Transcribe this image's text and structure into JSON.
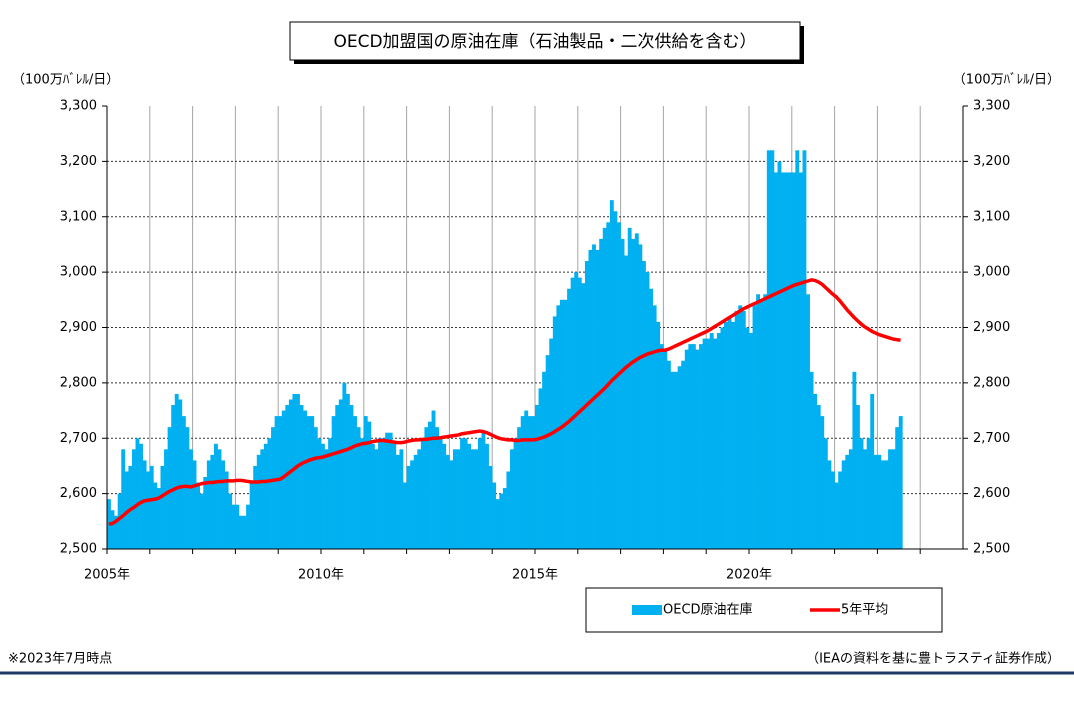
{
  "chart_data": {
    "type": "bar_line",
    "title": "OECD加盟国の原油在庫（石油製品・二次供給を含む）",
    "y_label": "（100万ﾊﾞﾚﾙ/日）",
    "y2_label": "（100万ﾊﾞﾚﾙ/日）",
    "note": "※2023年7月時点",
    "source": "（IEAの資料を基に豊トラスティ証券作成）",
    "categories": [
      "2005年",
      null,
      null,
      null,
      null,
      null,
      null,
      null,
      null,
      null,
      null,
      null,
      null,
      null,
      null,
      null,
      null,
      null,
      null,
      null,
      null,
      null,
      null,
      null,
      null,
      null,
      null,
      null,
      null,
      null,
      null,
      null,
      null,
      null,
      null,
      null,
      null,
      null,
      null,
      null,
      null,
      null,
      null,
      null,
      null,
      null,
      null,
      null,
      null,
      null,
      null,
      null,
      null,
      null,
      null,
      null,
      null,
      null,
      null,
      null,
      "2010年",
      null,
      null,
      null,
      null,
      null,
      null,
      null,
      null,
      null,
      null,
      null,
      null,
      null,
      null,
      null,
      null,
      null,
      null,
      null,
      null,
      null,
      null,
      null,
      null,
      null,
      null,
      null,
      null,
      null,
      null,
      null,
      null,
      null,
      null,
      null,
      null,
      null,
      null,
      null,
      null,
      null,
      null,
      null,
      null,
      null,
      null,
      null,
      null,
      null,
      null,
      null,
      null,
      null,
      null,
      null,
      null,
      null,
      null,
      null,
      "2015年",
      null,
      null,
      null,
      null,
      null,
      null,
      null,
      null,
      null,
      null,
      null,
      null,
      null,
      null,
      null,
      null,
      null,
      null,
      null,
      null,
      null,
      null,
      null,
      null,
      null,
      null,
      null,
      null,
      null,
      null,
      null,
      null,
      null,
      null,
      null,
      null,
      null,
      null,
      null,
      null,
      null,
      null,
      null,
      null,
      null,
      null,
      null,
      null,
      null,
      null,
      null,
      null,
      null,
      null,
      null,
      null,
      null,
      null,
      null,
      "2020年",
      null,
      null,
      null,
      null,
      null,
      null,
      null,
      null,
      null,
      null,
      null,
      null,
      null,
      null,
      null,
      null,
      null,
      null,
      null,
      null,
      null,
      null,
      null,
      null,
      null,
      null,
      null,
      null,
      null,
      null,
      null,
      null,
      null,
      null,
      null,
      null,
      null,
      null,
      null,
      null,
      null,
      null,
      null,
      null,
      null,
      null,
      null,
      null,
      null,
      null,
      null,
      null,
      null,
      null,
      null,
      null,
      null,
      null,
      null
    ],
    "series": [
      {
        "name": "OECD原油在庫",
        "type": "bar",
        "color": "#00b0f0",
        "values": [
          2590,
          2570,
          2560,
          2600,
          2680,
          2640,
          2650,
          2680,
          2700,
          2690,
          2660,
          2640,
          2650,
          2620,
          2610,
          2650,
          2680,
          2720,
          2760,
          2780,
          2770,
          2740,
          2720,
          2680,
          2660,
          2620,
          2600,
          2630,
          2660,
          2670,
          2690,
          2680,
          2660,
          2640,
          2600,
          2580,
          2580,
          2560,
          2560,
          2580,
          2620,
          2650,
          2670,
          2680,
          2690,
          2700,
          2720,
          2740,
          2740,
          2750,
          2760,
          2770,
          2780,
          2780,
          2760,
          2750,
          2740,
          2740,
          2720,
          2700,
          2690,
          2680,
          2700,
          2740,
          2760,
          2770,
          2800,
          2780,
          2760,
          2740,
          2720,
          2700,
          2740,
          2730,
          2690,
          2680,
          2700,
          2700,
          2710,
          2710,
          2690,
          2670,
          2680,
          2620,
          2650,
          2660,
          2670,
          2680,
          2700,
          2720,
          2730,
          2750,
          2720,
          2700,
          2690,
          2670,
          2660,
          2680,
          2680,
          2700,
          2700,
          2690,
          2680,
          2680,
          2700,
          2710,
          2690,
          2650,
          2620,
          2590,
          2600,
          2610,
          2640,
          2680,
          2700,
          2720,
          2740,
          2750,
          2740,
          2740,
          2760,
          2790,
          2820,
          2850,
          2880,
          2920,
          2940,
          2950,
          2950,
          2970,
          2990,
          3000,
          2990,
          2980,
          3020,
          3040,
          3050,
          3040,
          3060,
          3080,
          3090,
          3130,
          3110,
          3090,
          3060,
          3030,
          3080,
          3060,
          3070,
          3050,
          3020,
          3000,
          2970,
          2940,
          2910,
          2870,
          2860,
          2840,
          2820,
          2820,
          2830,
          2840,
          2860,
          2870,
          2870,
          2860,
          2870,
          2880,
          2880,
          2890,
          2880,
          2890,
          2900,
          2910,
          2920,
          2910,
          2930,
          2940,
          2930,
          2900,
          2890,
          2940,
          2960,
          2950,
          2960,
          3220,
          3220,
          3180,
          3200,
          3180,
          3180,
          3180,
          3180,
          3220,
          3180,
          3220,
          2960,
          2820,
          2780,
          2760,
          2740,
          2700,
          2660,
          2640,
          2620,
          2640,
          2660,
          2670,
          2680,
          2820,
          2760,
          2700,
          2680,
          2700,
          2780,
          2670,
          2670,
          2660,
          2660,
          2680,
          2680,
          2720,
          2740,
          null,
          null,
          null,
          null,
          null,
          null,
          null,
          null,
          null,
          null,
          null,
          null,
          null,
          null,
          null,
          null,
          null
        ]
      },
      {
        "name": "5年平均",
        "type": "line",
        "color": "#ff0000",
        "values": [
          2545,
          2546,
          2550,
          2555,
          2560,
          2566,
          2571,
          2575,
          2580,
          2584,
          2587,
          2588,
          2589,
          2590,
          2592,
          2596,
          2600,
          2604,
          2607,
          2610,
          2612,
          2613,
          2613,
          2612,
          2614,
          2616,
          2618,
          2619,
          2620,
          2620,
          2621,
          2622,
          2622,
          2623,
          2623,
          2623,
          2624,
          2624,
          2623,
          2622,
          2621,
          2621,
          2621,
          2622,
          2622,
          2623,
          2624,
          2625,
          2626,
          2630,
          2635,
          2640,
          2645,
          2650,
          2654,
          2657,
          2660,
          2662,
          2664,
          2665,
          2666,
          2668,
          2670,
          2672,
          2674,
          2676,
          2678,
          2680,
          2683,
          2686,
          2688,
          2690,
          2691,
          2692,
          2694,
          2695,
          2696,
          2696,
          2695,
          2694,
          2693,
          2692,
          2692,
          2693,
          2695,
          2696,
          2697,
          2697,
          2698,
          2698,
          2699,
          2700,
          2700,
          2701,
          2702,
          2703,
          2704,
          2705,
          2706,
          2708,
          2709,
          2710,
          2711,
          2712,
          2713,
          2712,
          2710,
          2707,
          2704,
          2701,
          2699,
          2698,
          2697,
          2697,
          2696,
          2696,
          2697,
          2697,
          2697,
          2697,
          2698,
          2700,
          2702,
          2705,
          2708,
          2712,
          2716,
          2720,
          2725,
          2730,
          2736,
          2742,
          2748,
          2754,
          2760,
          2766,
          2772,
          2778,
          2784,
          2790,
          2797,
          2804,
          2810,
          2816,
          2822,
          2828,
          2833,
          2838,
          2842,
          2846,
          2849,
          2852,
          2854,
          2856,
          2858,
          2859,
          2859,
          2861,
          2864,
          2867,
          2870,
          2873,
          2876,
          2879,
          2882,
          2885,
          2888,
          2891,
          2894,
          2898,
          2902,
          2906,
          2910,
          2914,
          2918,
          2922,
          2926,
          2930,
          2934,
          2937,
          2940,
          2943,
          2946,
          2949,
          2952,
          2955,
          2958,
          2961,
          2964,
          2967,
          2970,
          2973,
          2976,
          2978,
          2980,
          2982,
          2984,
          2986,
          2985,
          2982,
          2978,
          2972,
          2966,
          2960,
          2955,
          2948,
          2940,
          2932,
          2925,
          2918,
          2912,
          2906,
          2901,
          2897,
          2893,
          2890,
          2887,
          2885,
          2883,
          2881,
          2879,
          2878,
          2877,
          null,
          null,
          null,
          null,
          null,
          null,
          null,
          null,
          null,
          null,
          null,
          null,
          null,
          null,
          null,
          null,
          null
        ]
      }
    ],
    "ylim": [
      2500,
      3300
    ],
    "yticks": [
      {
        "value": 2500,
        "label": "2,500"
      },
      {
        "value": 2600,
        "label": "2,600"
      },
      {
        "value": 2700,
        "label": "2,700"
      },
      {
        "value": 2800,
        "label": "2,800"
      },
      {
        "value": 2900,
        "label": "2,900"
      },
      {
        "value": 3000,
        "label": "3,000"
      },
      {
        "value": 3100,
        "label": "3,100"
      },
      {
        "value": 3200,
        "label": "3,200"
      },
      {
        "value": 3300,
        "label": "3,300"
      }
    ],
    "y2lim": [
      2500,
      3300
    ],
    "y2ticks": [
      {
        "value": 2500,
        "label": "2,500"
      },
      {
        "value": 2600,
        "label": "2,600"
      },
      {
        "value": 2700,
        "label": "2,700"
      },
      {
        "value": 2800,
        "label": "2,800"
      },
      {
        "value": 2900,
        "label": "2,900"
      },
      {
        "value": 3000,
        "label": "3,000"
      },
      {
        "value": 3100,
        "label": "3,100"
      },
      {
        "value": 3200,
        "label": "3,200"
      },
      {
        "value": 3300,
        "label": "3,300"
      }
    ],
    "grid": true,
    "legend": "bottom-right"
  }
}
